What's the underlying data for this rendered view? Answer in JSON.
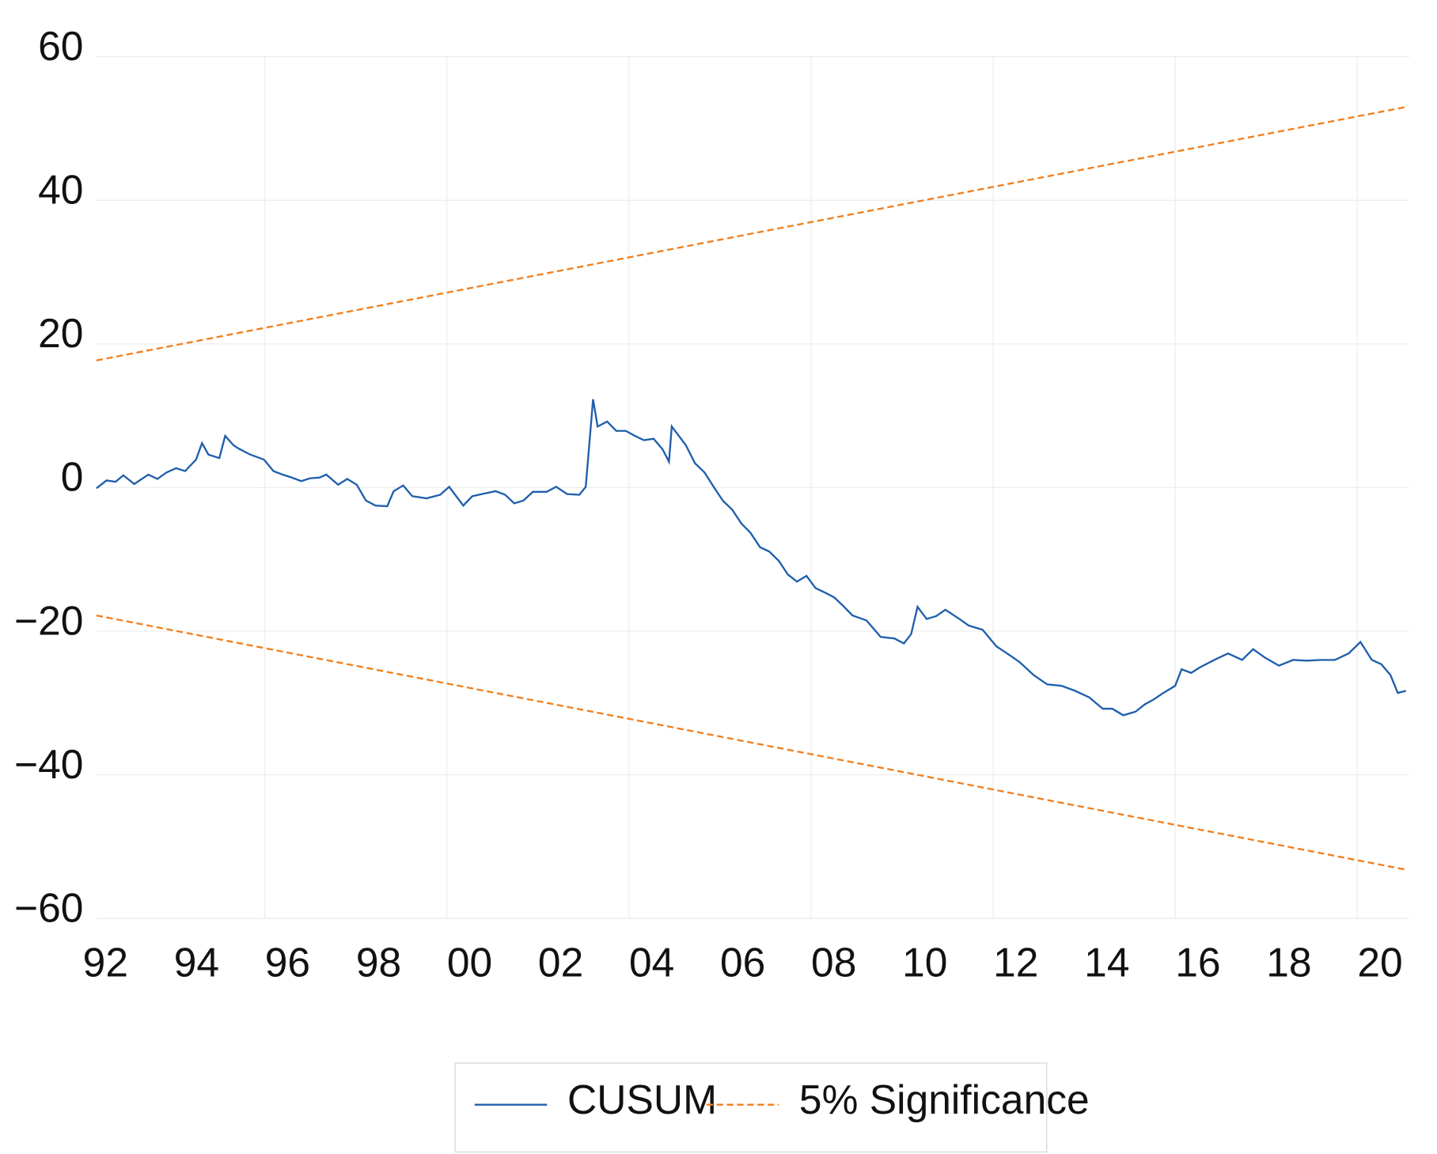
{
  "chart_data": {
    "type": "line",
    "xlim": [
      1992.3,
      2021.1
    ],
    "ylim": [
      -60,
      60
    ],
    "xticks": [
      {
        "value": 1992.5,
        "label": "92"
      },
      {
        "value": 1994.5,
        "label": "94"
      },
      {
        "value": 1996.5,
        "label": "96"
      },
      {
        "value": 1998.5,
        "label": "98"
      },
      {
        "value": 2000.5,
        "label": "00"
      },
      {
        "value": 2002.5,
        "label": "02"
      },
      {
        "value": 2004.5,
        "label": "04"
      },
      {
        "value": 2006.5,
        "label": "06"
      },
      {
        "value": 2008.5,
        "label": "08"
      },
      {
        "value": 2010.5,
        "label": "10"
      },
      {
        "value": 2012.5,
        "label": "12"
      },
      {
        "value": 2014.5,
        "label": "14"
      },
      {
        "value": 2016.5,
        "label": "16"
      },
      {
        "value": 2018.5,
        "label": "18"
      },
      {
        "value": 2020.5,
        "label": "20"
      }
    ],
    "xgrid": [
      1996,
      2000,
      2004,
      2008,
      2012,
      2016,
      2020
    ],
    "yticks": [
      60,
      40,
      20,
      0,
      {
        "value": -20,
        "label": "−20"
      },
      {
        "value": -40,
        "label": "−40"
      },
      {
        "value": -60,
        "label": "−60"
      }
    ],
    "grid": true,
    "legend": "bottom",
    "series": [
      {
        "name": "CUSUM",
        "color": "#1f5fad",
        "dashed": false,
        "x": [
          1992.3,
          1992.52,
          1992.72,
          1992.89,
          1993.13,
          1993.44,
          1993.64,
          1993.84,
          1994.05,
          1994.25,
          1994.49,
          1994.62,
          1994.76,
          1995.0,
          1995.13,
          1995.31,
          1995.43,
          1995.68,
          1995.98,
          1996.19,
          1996.39,
          1996.59,
          1996.8,
          1997.0,
          1997.2,
          1997.35,
          1997.61,
          1997.81,
          1998.02,
          1998.22,
          1998.43,
          1998.69,
          1998.83,
          1999.04,
          1999.24,
          1999.55,
          1999.85,
          2000.05,
          2000.36,
          2000.56,
          2000.77,
          2001.07,
          2001.28,
          2001.48,
          2001.68,
          2001.89,
          2002.19,
          2002.4,
          2002.64,
          2002.91,
          2003.05,
          2003.21,
          2003.31,
          2003.52,
          2003.72,
          2003.93,
          2004.13,
          2004.33,
          2004.54,
          2004.74,
          2004.88,
          2004.94,
          2005.25,
          2005.45,
          2005.66,
          2005.86,
          2006.06,
          2006.27,
          2006.47,
          2006.67,
          2006.88,
          2007.08,
          2007.29,
          2007.49,
          2007.69,
          2007.9,
          2008.1,
          2008.3,
          2008.51,
          2008.71,
          2008.91,
          2009.22,
          2009.53,
          2009.83,
          2010.04,
          2010.2,
          2010.34,
          2010.54,
          2010.75,
          2010.95,
          2011.26,
          2011.46,
          2011.77,
          2012.07,
          2012.38,
          2012.58,
          2012.89,
          2013.19,
          2013.5,
          2013.8,
          2014.11,
          2014.41,
          2014.62,
          2014.86,
          2015.13,
          2015.33,
          2015.53,
          2015.74,
          2016.0,
          2016.14,
          2016.35,
          2016.55,
          2016.86,
          2017.16,
          2017.47,
          2017.71,
          2017.98,
          2018.28,
          2018.59,
          2018.89,
          2019.2,
          2019.51,
          2019.81,
          2020.07,
          2020.32,
          2020.53,
          2020.73,
          2020.89,
          2021.07
        ],
        "values": [
          -0.1,
          1.0,
          0.8,
          1.7,
          0.5,
          1.8,
          1.2,
          2.1,
          2.7,
          2.3,
          3.9,
          6.2,
          4.6,
          4.1,
          7.2,
          5.9,
          5.4,
          4.6,
          3.9,
          2.3,
          1.8,
          1.4,
          0.9,
          1.3,
          1.4,
          1.8,
          0.4,
          1.2,
          0.4,
          -1.8,
          -2.5,
          -2.6,
          -0.5,
          0.3,
          -1.2,
          -1.5,
          -1.0,
          0.1,
          -2.5,
          -1.2,
          -0.9,
          -0.5,
          -1.0,
          -2.2,
          -1.8,
          -0.6,
          -0.6,
          0.1,
          -0.9,
          -1.0,
          0.1,
          12.3,
          8.5,
          9.2,
          7.9,
          7.9,
          7.2,
          6.6,
          6.8,
          5.3,
          3.6,
          8.5,
          5.9,
          3.4,
          2.1,
          0.1,
          -1.8,
          -3.1,
          -5.0,
          -6.3,
          -8.3,
          -8.9,
          -10.2,
          -12.1,
          -13.1,
          -12.3,
          -14.0,
          -14.6,
          -15.3,
          -16.5,
          -17.8,
          -18.5,
          -20.8,
          -21.0,
          -21.7,
          -20.4,
          -16.6,
          -18.3,
          -17.9,
          -17.0,
          -18.3,
          -19.2,
          -19.8,
          -22.1,
          -23.4,
          -24.3,
          -26.1,
          -27.4,
          -27.6,
          -28.3,
          -29.2,
          -30.8,
          -30.8,
          -31.7,
          -31.2,
          -30.2,
          -29.5,
          -28.6,
          -27.6,
          -25.3,
          -25.8,
          -25.0,
          -24.0,
          -23.1,
          -24.0,
          -22.5,
          -23.7,
          -24.8,
          -24.0,
          -24.1,
          -24.0,
          -24.0,
          -23.1,
          -21.5,
          -24.0,
          -24.6,
          -26.1,
          -28.6,
          -28.3
        ]
      },
      {
        "name": "5% Significance",
        "color": "#f07f1e",
        "dashed": true,
        "x": [
          1992.3,
          2021.07
        ],
        "values": [
          17.7,
          53.0
        ],
        "lower": [
          -17.8,
          -53.2
        ]
      }
    ]
  }
}
